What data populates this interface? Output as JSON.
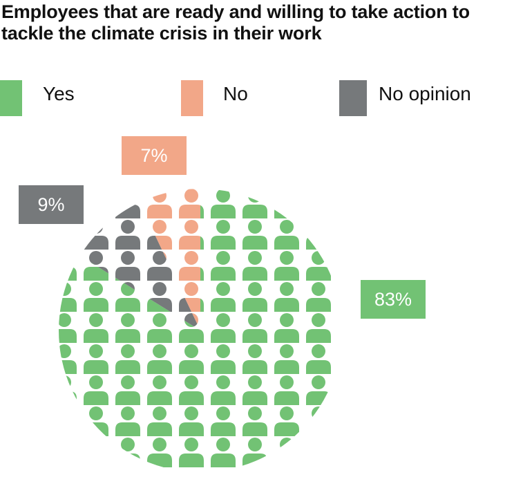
{
  "chart_data": {
    "type": "pie",
    "title": "Employees that are ready and willing to take action to tackle the climate crisis in their work",
    "categories": [
      "Yes",
      "No opinion",
      "No"
    ],
    "values": [
      83,
      9,
      7
    ],
    "labels": [
      "83%",
      "9%",
      "7%"
    ],
    "colors": [
      "#72c274",
      "#76797b",
      "#f2a788"
    ],
    "legend": {
      "placement": "top",
      "entries": [
        "Yes",
        "No",
        "No opinion"
      ]
    },
    "start": "12 o'clock, clockwise"
  }
}
